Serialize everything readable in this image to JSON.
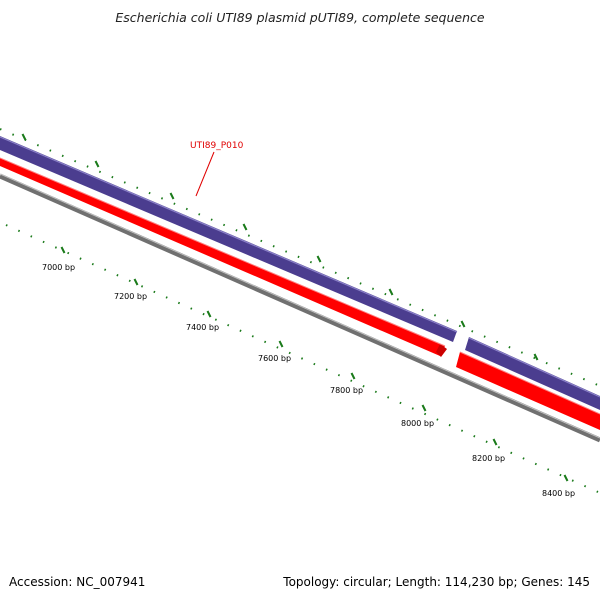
{
  "header": {
    "title": "Escherichia coli UTI89 plasmid pUTI89, complete sequence"
  },
  "gene_label": "UTI89_P010",
  "ruler": {
    "labels": [
      "7000 bp",
      "7200 bp",
      "7400 bp",
      "7600 bp",
      "7800 bp",
      "8000 bp",
      "8200 bp",
      "8400 bp"
    ]
  },
  "footer": {
    "accession": "Accession: NC_007941",
    "summary": "Topology: circular; Length: 114,230 bp; Genes: 145"
  },
  "colors": {
    "forward_strand": "#4b3d8f",
    "reverse_strand": "#ff0000",
    "backbone": "#808080",
    "ticks": "#1a7a1a",
    "gene_label": "#e00000"
  }
}
